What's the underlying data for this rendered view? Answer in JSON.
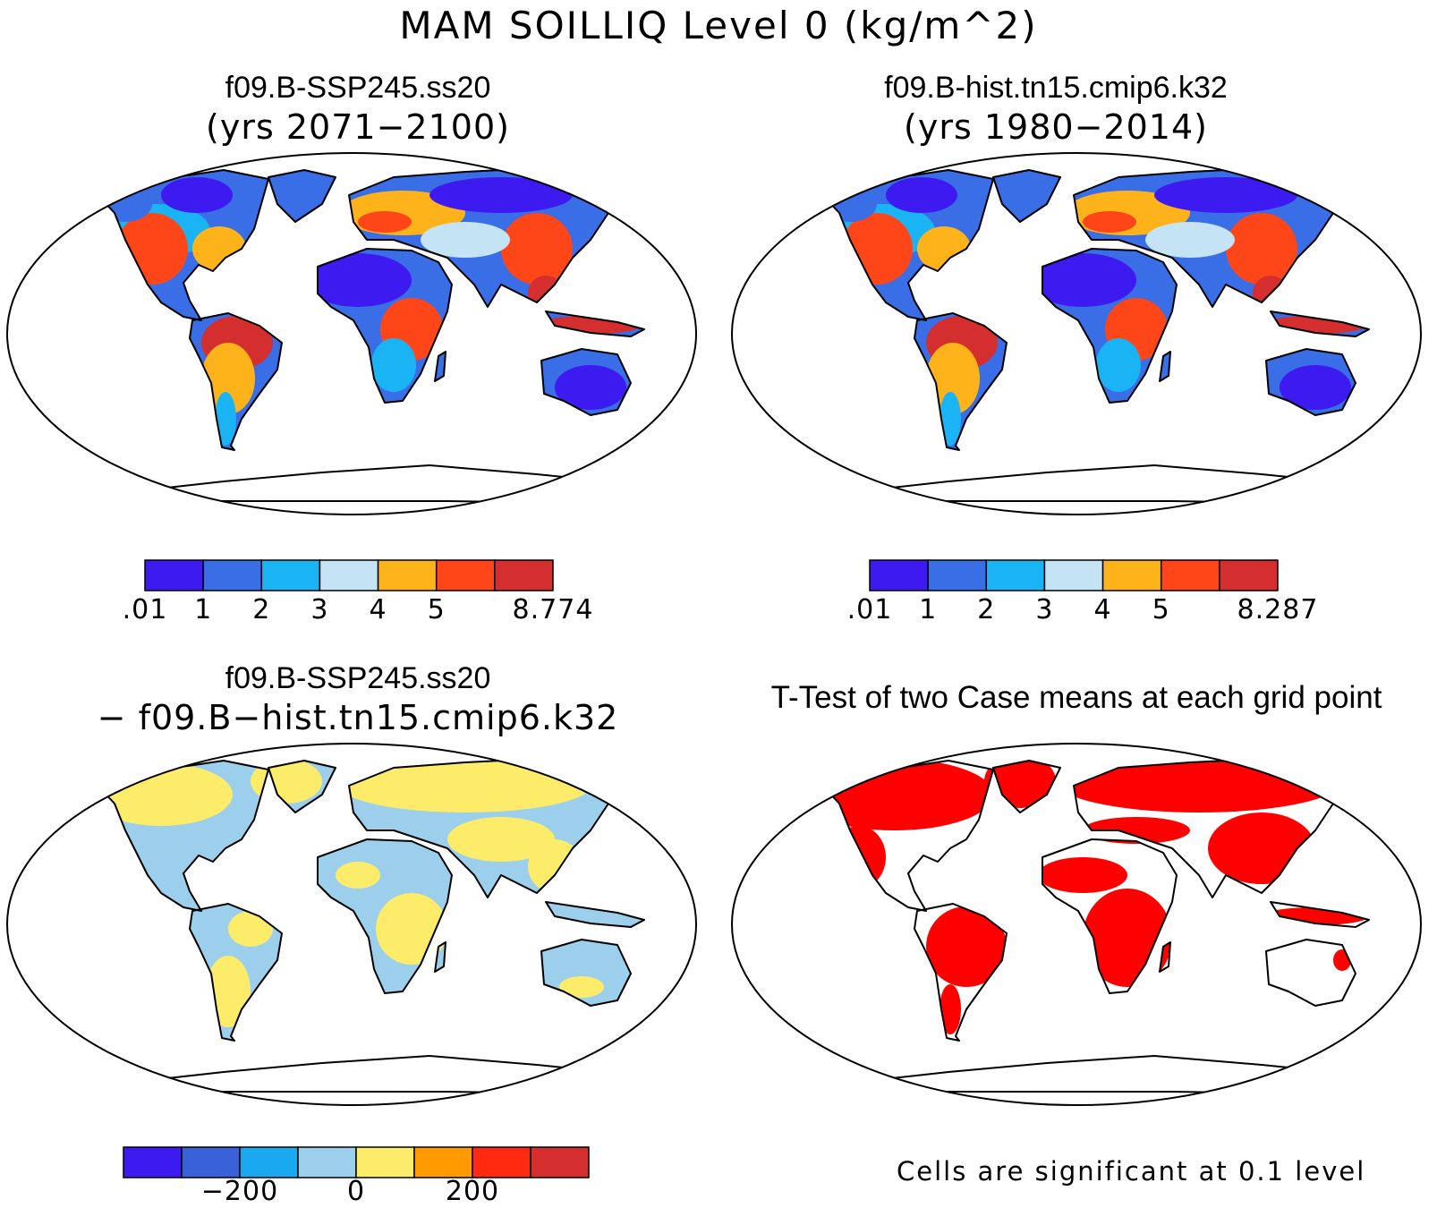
{
  "title": "MAM SOILLIQ Level 0 (kg/m^2)",
  "panels": {
    "top_left": {
      "case": "f09.B-SSP245.ss20",
      "years": "(yrs 2071−2100)",
      "colorbar": {
        "colors": [
          "#3c1af0",
          "#3a6ee6",
          "#1ab4f5",
          "#c4e4f6",
          "#ffb31a",
          "#ff4618",
          "#d42e2e"
        ],
        "labels": [
          ".01",
          "1",
          "2",
          "3",
          "4",
          "5",
          "8.774"
        ]
      }
    },
    "top_right": {
      "case": "f09.B-hist.tn15.cmip6.k32",
      "years": "(yrs 1980−2014)",
      "colorbar": {
        "colors": [
          "#3c1af0",
          "#3a6ee6",
          "#1ab4f5",
          "#c4e4f6",
          "#ffb31a",
          "#ff4618",
          "#d42e2e"
        ],
        "labels": [
          ".01",
          "1",
          "2",
          "3",
          "4",
          "5",
          "8.287"
        ]
      }
    },
    "bottom_left": {
      "case": "f09.B-SSP245.ss20",
      "minus_case": "− f09.B−hist.tn15.cmip6.k32",
      "colorbar": {
        "colors": [
          "#3c1af0",
          "#3a62d8",
          "#1aa8f0",
          "#9ccfec",
          "#fcec6a",
          "#ff9a00",
          "#ff2a10",
          "#d42e2e"
        ],
        "labels": [
          "−200",
          "0",
          "200"
        ]
      }
    },
    "bottom_right": {
      "title": "T-Test of two Case means at each grid point",
      "note": "Cells are significant at 0.1 level",
      "color": "#ff0000"
    }
  },
  "colors": {
    "ocean": "#ffffff",
    "coast": "#000000"
  }
}
